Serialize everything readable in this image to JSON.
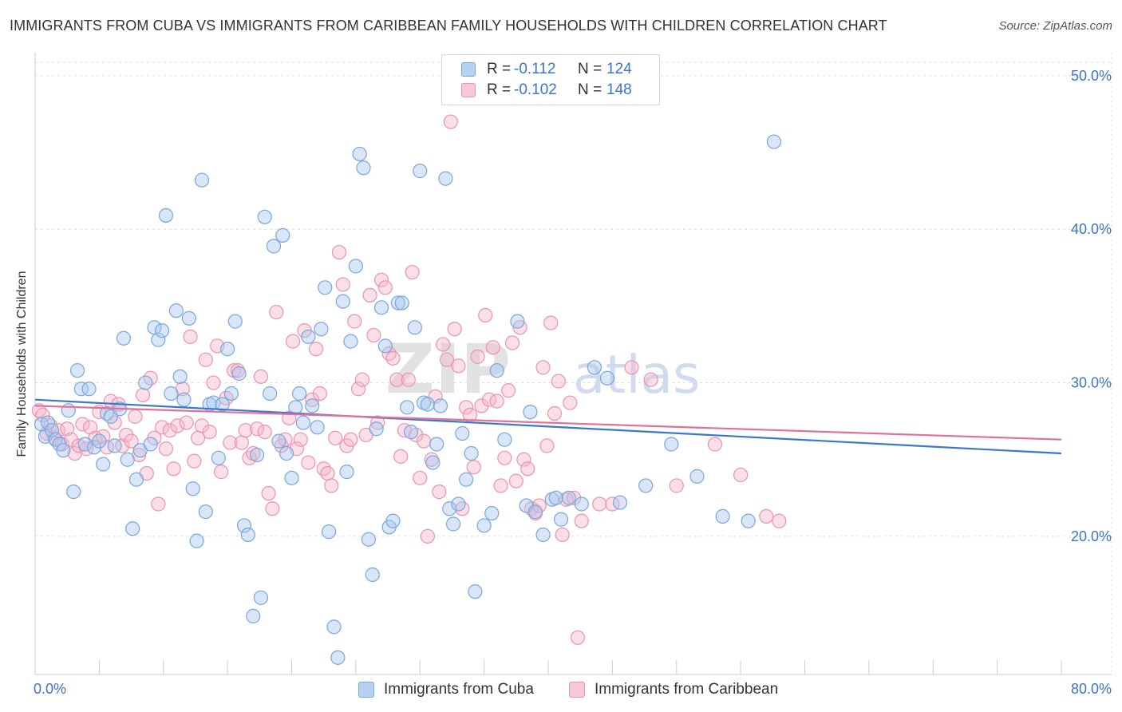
{
  "title": "IMMIGRANTS FROM CUBA VS IMMIGRANTS FROM CARIBBEAN FAMILY HOUSEHOLDS WITH CHILDREN CORRELATION CHART",
  "source": "Source: ZipAtlas.com",
  "watermark": {
    "zip": "ZIP",
    "atlas": "atlas"
  },
  "legend": {
    "rows": [
      {
        "r_label": "R =",
        "r_value": "-0.112",
        "n_label": "N =",
        "n_value": "124"
      },
      {
        "r_label": "R =",
        "r_value": "-0.102",
        "n_label": "N =",
        "n_value": "148"
      }
    ]
  },
  "bottom_legend": {
    "cuba": "Immigrants from Cuba",
    "caribbean": "Immigrants from Caribbean"
  },
  "colors": {
    "cuba_fill": "#a9c7ee",
    "cuba_stroke": "#7aa6dd",
    "cuba_line": "#3a78d0",
    "carib_fill": "#f5b9cb",
    "carib_stroke": "#ec93ae",
    "carib_line": "#e2719a",
    "axis_text": "#3b74c8",
    "grid": "#dddddd"
  },
  "chart_data": {
    "type": "scatter",
    "title": "IMMIGRANTS FROM CUBA VS IMMIGRANTS FROM CARIBBEAN FAMILY HOUSEHOLDS WITH CHILDREN CORRELATION CHART",
    "xlabel": "",
    "ylabel": "Family Households with Children",
    "xlim": [
      0,
      80
    ],
    "ylim": [
      11,
      51.5
    ],
    "x_tick_labels": [
      "0.0%",
      "80.0%"
    ],
    "y_ticks": [
      20,
      30,
      40,
      50
    ],
    "y_tick_labels": [
      "20.0%",
      "30.0%",
      "40.0%",
      "50.0%"
    ],
    "grid": true,
    "series": [
      {
        "name": "Immigrants from Cuba",
        "r": -0.112,
        "n": 124,
        "trend": [
          [
            0,
            28.9
          ],
          [
            80,
            25.4
          ]
        ],
        "points": [
          [
            0.5,
            27.3
          ],
          [
            0.8,
            26.5
          ],
          [
            1.0,
            27.4
          ],
          [
            1.3,
            26.9
          ],
          [
            1.6,
            26.3
          ],
          [
            1.9,
            26.0
          ],
          [
            2.2,
            25.6
          ],
          [
            2.6,
            28.2
          ],
          [
            3.0,
            22.9
          ],
          [
            3.3,
            30.8
          ],
          [
            3.6,
            29.6
          ],
          [
            3.9,
            26.0
          ],
          [
            4.2,
            29.6
          ],
          [
            4.6,
            25.8
          ],
          [
            5.0,
            26.2
          ],
          [
            5.3,
            24.7
          ],
          [
            5.6,
            28.0
          ],
          [
            5.9,
            27.8
          ],
          [
            6.2,
            25.9
          ],
          [
            6.6,
            28.3
          ],
          [
            6.9,
            32.9
          ],
          [
            7.2,
            25.0
          ],
          [
            7.6,
            20.5
          ],
          [
            7.9,
            23.7
          ],
          [
            8.2,
            25.6
          ],
          [
            8.6,
            30.0
          ],
          [
            9.0,
            26.0
          ],
          [
            9.3,
            33.6
          ],
          [
            9.6,
            32.8
          ],
          [
            9.9,
            33.4
          ],
          [
            10.2,
            40.9
          ],
          [
            10.6,
            29.3
          ],
          [
            11.0,
            34.7
          ],
          [
            11.3,
            30.4
          ],
          [
            11.6,
            28.9
          ],
          [
            12.0,
            34.2
          ],
          [
            12.3,
            23.1
          ],
          [
            12.6,
            19.7
          ],
          [
            13.0,
            43.2
          ],
          [
            13.3,
            21.6
          ],
          [
            13.6,
            28.6
          ],
          [
            13.9,
            28.7
          ],
          [
            14.3,
            25.1
          ],
          [
            14.6,
            28.6
          ],
          [
            15.0,
            32.2
          ],
          [
            15.3,
            29.3
          ],
          [
            15.6,
            34.0
          ],
          [
            15.9,
            30.6
          ],
          [
            16.3,
            20.7
          ],
          [
            16.6,
            20.1
          ],
          [
            17.0,
            14.8
          ],
          [
            17.3,
            25.3
          ],
          [
            17.6,
            16.0
          ],
          [
            17.9,
            40.8
          ],
          [
            18.3,
            29.3
          ],
          [
            18.6,
            38.9
          ],
          [
            19.0,
            26.2
          ],
          [
            19.3,
            39.6
          ],
          [
            19.6,
            25.4
          ],
          [
            20.0,
            23.8
          ],
          [
            20.3,
            28.4
          ],
          [
            20.6,
            29.3
          ],
          [
            20.9,
            27.4
          ],
          [
            21.3,
            33.0
          ],
          [
            21.6,
            28.5
          ],
          [
            22.0,
            27.1
          ],
          [
            22.3,
            33.5
          ],
          [
            22.6,
            36.2
          ],
          [
            22.9,
            20.3
          ],
          [
            23.3,
            14.1
          ],
          [
            23.6,
            12.1
          ],
          [
            24.0,
            35.3
          ],
          [
            24.3,
            24.2
          ],
          [
            24.6,
            32.7
          ],
          [
            25.0,
            37.6
          ],
          [
            25.3,
            44.9
          ],
          [
            25.6,
            44.0
          ],
          [
            26.0,
            19.8
          ],
          [
            26.3,
            17.5
          ],
          [
            26.6,
            27.0
          ],
          [
            27.0,
            34.9
          ],
          [
            27.3,
            32.4
          ],
          [
            27.6,
            20.6
          ],
          [
            27.9,
            21.0
          ],
          [
            28.3,
            35.2
          ],
          [
            28.6,
            35.2
          ],
          [
            29.0,
            28.4
          ],
          [
            29.3,
            26.8
          ],
          [
            29.6,
            33.6
          ],
          [
            30.0,
            43.8
          ],
          [
            30.3,
            28.7
          ],
          [
            30.6,
            28.6
          ],
          [
            31.0,
            24.8
          ],
          [
            31.3,
            26.0
          ],
          [
            31.6,
            28.5
          ],
          [
            32.0,
            43.3
          ],
          [
            32.3,
            21.8
          ],
          [
            32.6,
            20.8
          ],
          [
            33.0,
            22.1
          ],
          [
            33.3,
            26.7
          ],
          [
            33.6,
            23.7
          ],
          [
            34.0,
            25.4
          ],
          [
            34.3,
            16.4
          ],
          [
            35.0,
            20.7
          ],
          [
            35.6,
            21.5
          ],
          [
            36.0,
            30.8
          ],
          [
            36.6,
            26.3
          ],
          [
            37.6,
            34.0
          ],
          [
            38.3,
            22.0
          ],
          [
            38.6,
            28.1
          ],
          [
            39.0,
            21.6
          ],
          [
            39.6,
            20.1
          ],
          [
            40.3,
            22.4
          ],
          [
            40.6,
            22.5
          ],
          [
            41.0,
            21.1
          ],
          [
            41.6,
            22.5
          ],
          [
            42.6,
            22.1
          ],
          [
            43.6,
            31.0
          ],
          [
            44.6,
            30.3
          ],
          [
            45.6,
            22.2
          ],
          [
            47.6,
            23.3
          ],
          [
            49.6,
            26.0
          ],
          [
            51.6,
            23.9
          ],
          [
            53.6,
            21.3
          ],
          [
            55.6,
            21.0
          ],
          [
            57.6,
            45.7
          ]
        ]
      },
      {
        "name": "Immigrants from Caribbean",
        "r": -0.102,
        "n": 148,
        "trend": [
          [
            0,
            28.5
          ],
          [
            80,
            26.3
          ]
        ],
        "points": [
          [
            0.3,
            28.2
          ],
          [
            0.6,
            27.9
          ],
          [
            0.9,
            26.7
          ],
          [
            1.2,
            27.2
          ],
          [
            1.5,
            26.4
          ],
          [
            1.8,
            26.9
          ],
          [
            2.1,
            26.0
          ],
          [
            2.5,
            27.0
          ],
          [
            2.8,
            26.3
          ],
          [
            3.1,
            25.4
          ],
          [
            3.4,
            25.9
          ],
          [
            3.7,
            27.3
          ],
          [
            4.0,
            25.7
          ],
          [
            4.3,
            27.1
          ],
          [
            4.7,
            26.4
          ],
          [
            5.0,
            28.1
          ],
          [
            5.3,
            26.5
          ],
          [
            5.6,
            25.8
          ],
          [
            5.9,
            28.8
          ],
          [
            6.2,
            27.4
          ],
          [
            6.5,
            28.6
          ],
          [
            6.8,
            25.9
          ],
          [
            7.1,
            26.6
          ],
          [
            7.5,
            26.2
          ],
          [
            7.8,
            27.8
          ],
          [
            8.1,
            25.3
          ],
          [
            8.4,
            29.2
          ],
          [
            8.7,
            24.1
          ],
          [
            9.0,
            30.3
          ],
          [
            9.3,
            26.4
          ],
          [
            9.6,
            22.1
          ],
          [
            9.9,
            27.1
          ],
          [
            10.2,
            25.7
          ],
          [
            10.5,
            26.9
          ],
          [
            10.8,
            24.4
          ],
          [
            11.1,
            27.2
          ],
          [
            11.5,
            29.6
          ],
          [
            11.8,
            27.4
          ],
          [
            12.1,
            33.0
          ],
          [
            12.4,
            24.9
          ],
          [
            12.7,
            26.4
          ],
          [
            13.0,
            27.2
          ],
          [
            13.3,
            31.5
          ],
          [
            13.6,
            26.8
          ],
          [
            13.9,
            30.0
          ],
          [
            14.2,
            32.4
          ],
          [
            14.5,
            24.2
          ],
          [
            14.9,
            29.0
          ],
          [
            15.2,
            26.1
          ],
          [
            15.5,
            30.8
          ],
          [
            15.8,
            30.8
          ],
          [
            16.1,
            26.1
          ],
          [
            16.4,
            26.9
          ],
          [
            16.7,
            25.1
          ],
          [
            17.0,
            25.4
          ],
          [
            17.3,
            27.0
          ],
          [
            17.6,
            30.4
          ],
          [
            17.9,
            26.8
          ],
          [
            18.2,
            22.8
          ],
          [
            18.5,
            21.8
          ],
          [
            18.8,
            34.6
          ],
          [
            19.2,
            25.9
          ],
          [
            19.5,
            26.3
          ],
          [
            19.8,
            27.7
          ],
          [
            20.1,
            32.7
          ],
          [
            20.4,
            25.7
          ],
          [
            20.7,
            26.3
          ],
          [
            21.0,
            33.4
          ],
          [
            21.3,
            24.8
          ],
          [
            21.6,
            28.9
          ],
          [
            21.9,
            32.2
          ],
          [
            22.2,
            29.3
          ],
          [
            22.5,
            24.4
          ],
          [
            22.8,
            24.1
          ],
          [
            23.1,
            23.3
          ],
          [
            23.4,
            26.4
          ],
          [
            23.7,
            38.5
          ],
          [
            24.0,
            36.4
          ],
          [
            24.3,
            25.9
          ],
          [
            24.6,
            26.3
          ],
          [
            24.9,
            34.0
          ],
          [
            25.2,
            29.6
          ],
          [
            25.5,
            30.2
          ],
          [
            25.8,
            26.6
          ],
          [
            26.1,
            35.7
          ],
          [
            26.4,
            33.1
          ],
          [
            26.7,
            27.4
          ],
          [
            27.0,
            36.7
          ],
          [
            27.3,
            36.2
          ],
          [
            27.6,
            31.9
          ],
          [
            27.9,
            31.6
          ],
          [
            28.2,
            30.2
          ],
          [
            28.5,
            25.2
          ],
          [
            28.8,
            26.9
          ],
          [
            29.1,
            30.2
          ],
          [
            29.4,
            37.2
          ],
          [
            29.7,
            26.6
          ],
          [
            30.0,
            23.8
          ],
          [
            30.3,
            26.2
          ],
          [
            30.6,
            20.0
          ],
          [
            30.9,
            25.0
          ],
          [
            31.2,
            29.1
          ],
          [
            31.5,
            22.9
          ],
          [
            31.8,
            32.5
          ],
          [
            32.1,
            31.5
          ],
          [
            32.4,
            47.0
          ],
          [
            32.7,
            33.5
          ],
          [
            33.0,
            31.1
          ],
          [
            33.3,
            21.8
          ],
          [
            33.6,
            28.4
          ],
          [
            33.9,
            27.9
          ],
          [
            34.2,
            24.5
          ],
          [
            34.5,
            31.7
          ],
          [
            34.8,
            28.5
          ],
          [
            35.1,
            34.4
          ],
          [
            35.4,
            28.9
          ],
          [
            35.7,
            32.3
          ],
          [
            36.0,
            28.8
          ],
          [
            36.3,
            23.3
          ],
          [
            36.6,
            25.1
          ],
          [
            36.9,
            29.5
          ],
          [
            37.2,
            32.6
          ],
          [
            37.5,
            23.6
          ],
          [
            37.8,
            33.6
          ],
          [
            38.1,
            25.0
          ],
          [
            38.4,
            24.4
          ],
          [
            38.7,
            21.8
          ],
          [
            39.0,
            21.5
          ],
          [
            39.3,
            22.0
          ],
          [
            39.6,
            31.0
          ],
          [
            39.9,
            25.9
          ],
          [
            40.2,
            33.9
          ],
          [
            40.5,
            28.0
          ],
          [
            40.8,
            30.1
          ],
          [
            41.1,
            20.1
          ],
          [
            41.4,
            22.4
          ],
          [
            41.7,
            28.7
          ],
          [
            42.0,
            22.5
          ],
          [
            42.3,
            13.4
          ],
          [
            42.6,
            21.0
          ],
          [
            44.0,
            22.1
          ],
          [
            45.0,
            22.1
          ],
          [
            46.5,
            31.0
          ],
          [
            48.0,
            30.2
          ],
          [
            50.0,
            23.3
          ],
          [
            53.0,
            26.0
          ],
          [
            55.0,
            24.0
          ],
          [
            57.0,
            21.3
          ],
          [
            58.0,
            21.0
          ]
        ]
      }
    ]
  }
}
